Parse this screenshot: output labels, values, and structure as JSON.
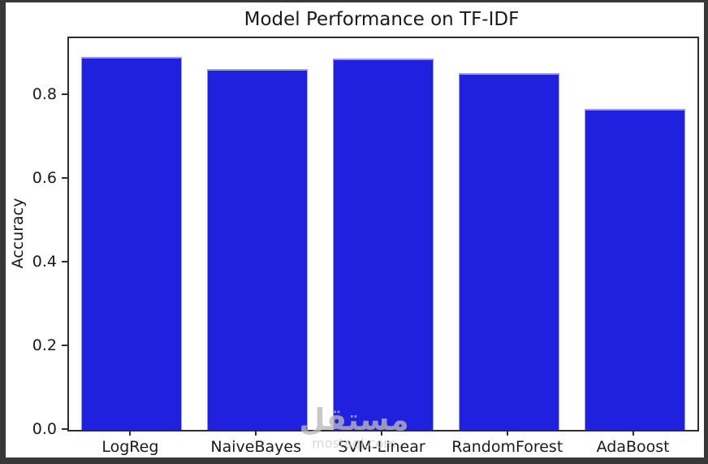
{
  "window": {
    "frame_color": "#383838",
    "figure_background": "#ffffff"
  },
  "chart_data": {
    "type": "bar",
    "title": "Model Performance on TF-IDF",
    "categories": [
      "LogReg",
      "NaiveBayes",
      "SVM-Linear",
      "RandomForest",
      "AdaBoost"
    ],
    "values": [
      0.891,
      0.863,
      0.887,
      0.852,
      0.767
    ],
    "xlabel": "",
    "ylabel": "Accuracy",
    "ylim": [
      0,
      0.936
    ],
    "yticks": [
      0.0,
      0.2,
      0.4,
      0.6,
      0.8
    ],
    "ytick_labels": [
      "0.0",
      "0.2",
      "0.4",
      "0.6",
      "0.8"
    ],
    "grid": false,
    "legend_position": "none",
    "bar_color": "#2020df",
    "bar_edge_color": "#9a9ae8",
    "spine_color": "#2e2e2e",
    "text_color": "#1a1a1a"
  },
  "watermark": {
    "logo_text": "مستقل",
    "domain_text": "mostaql.com",
    "color": "#c6c6c6"
  }
}
